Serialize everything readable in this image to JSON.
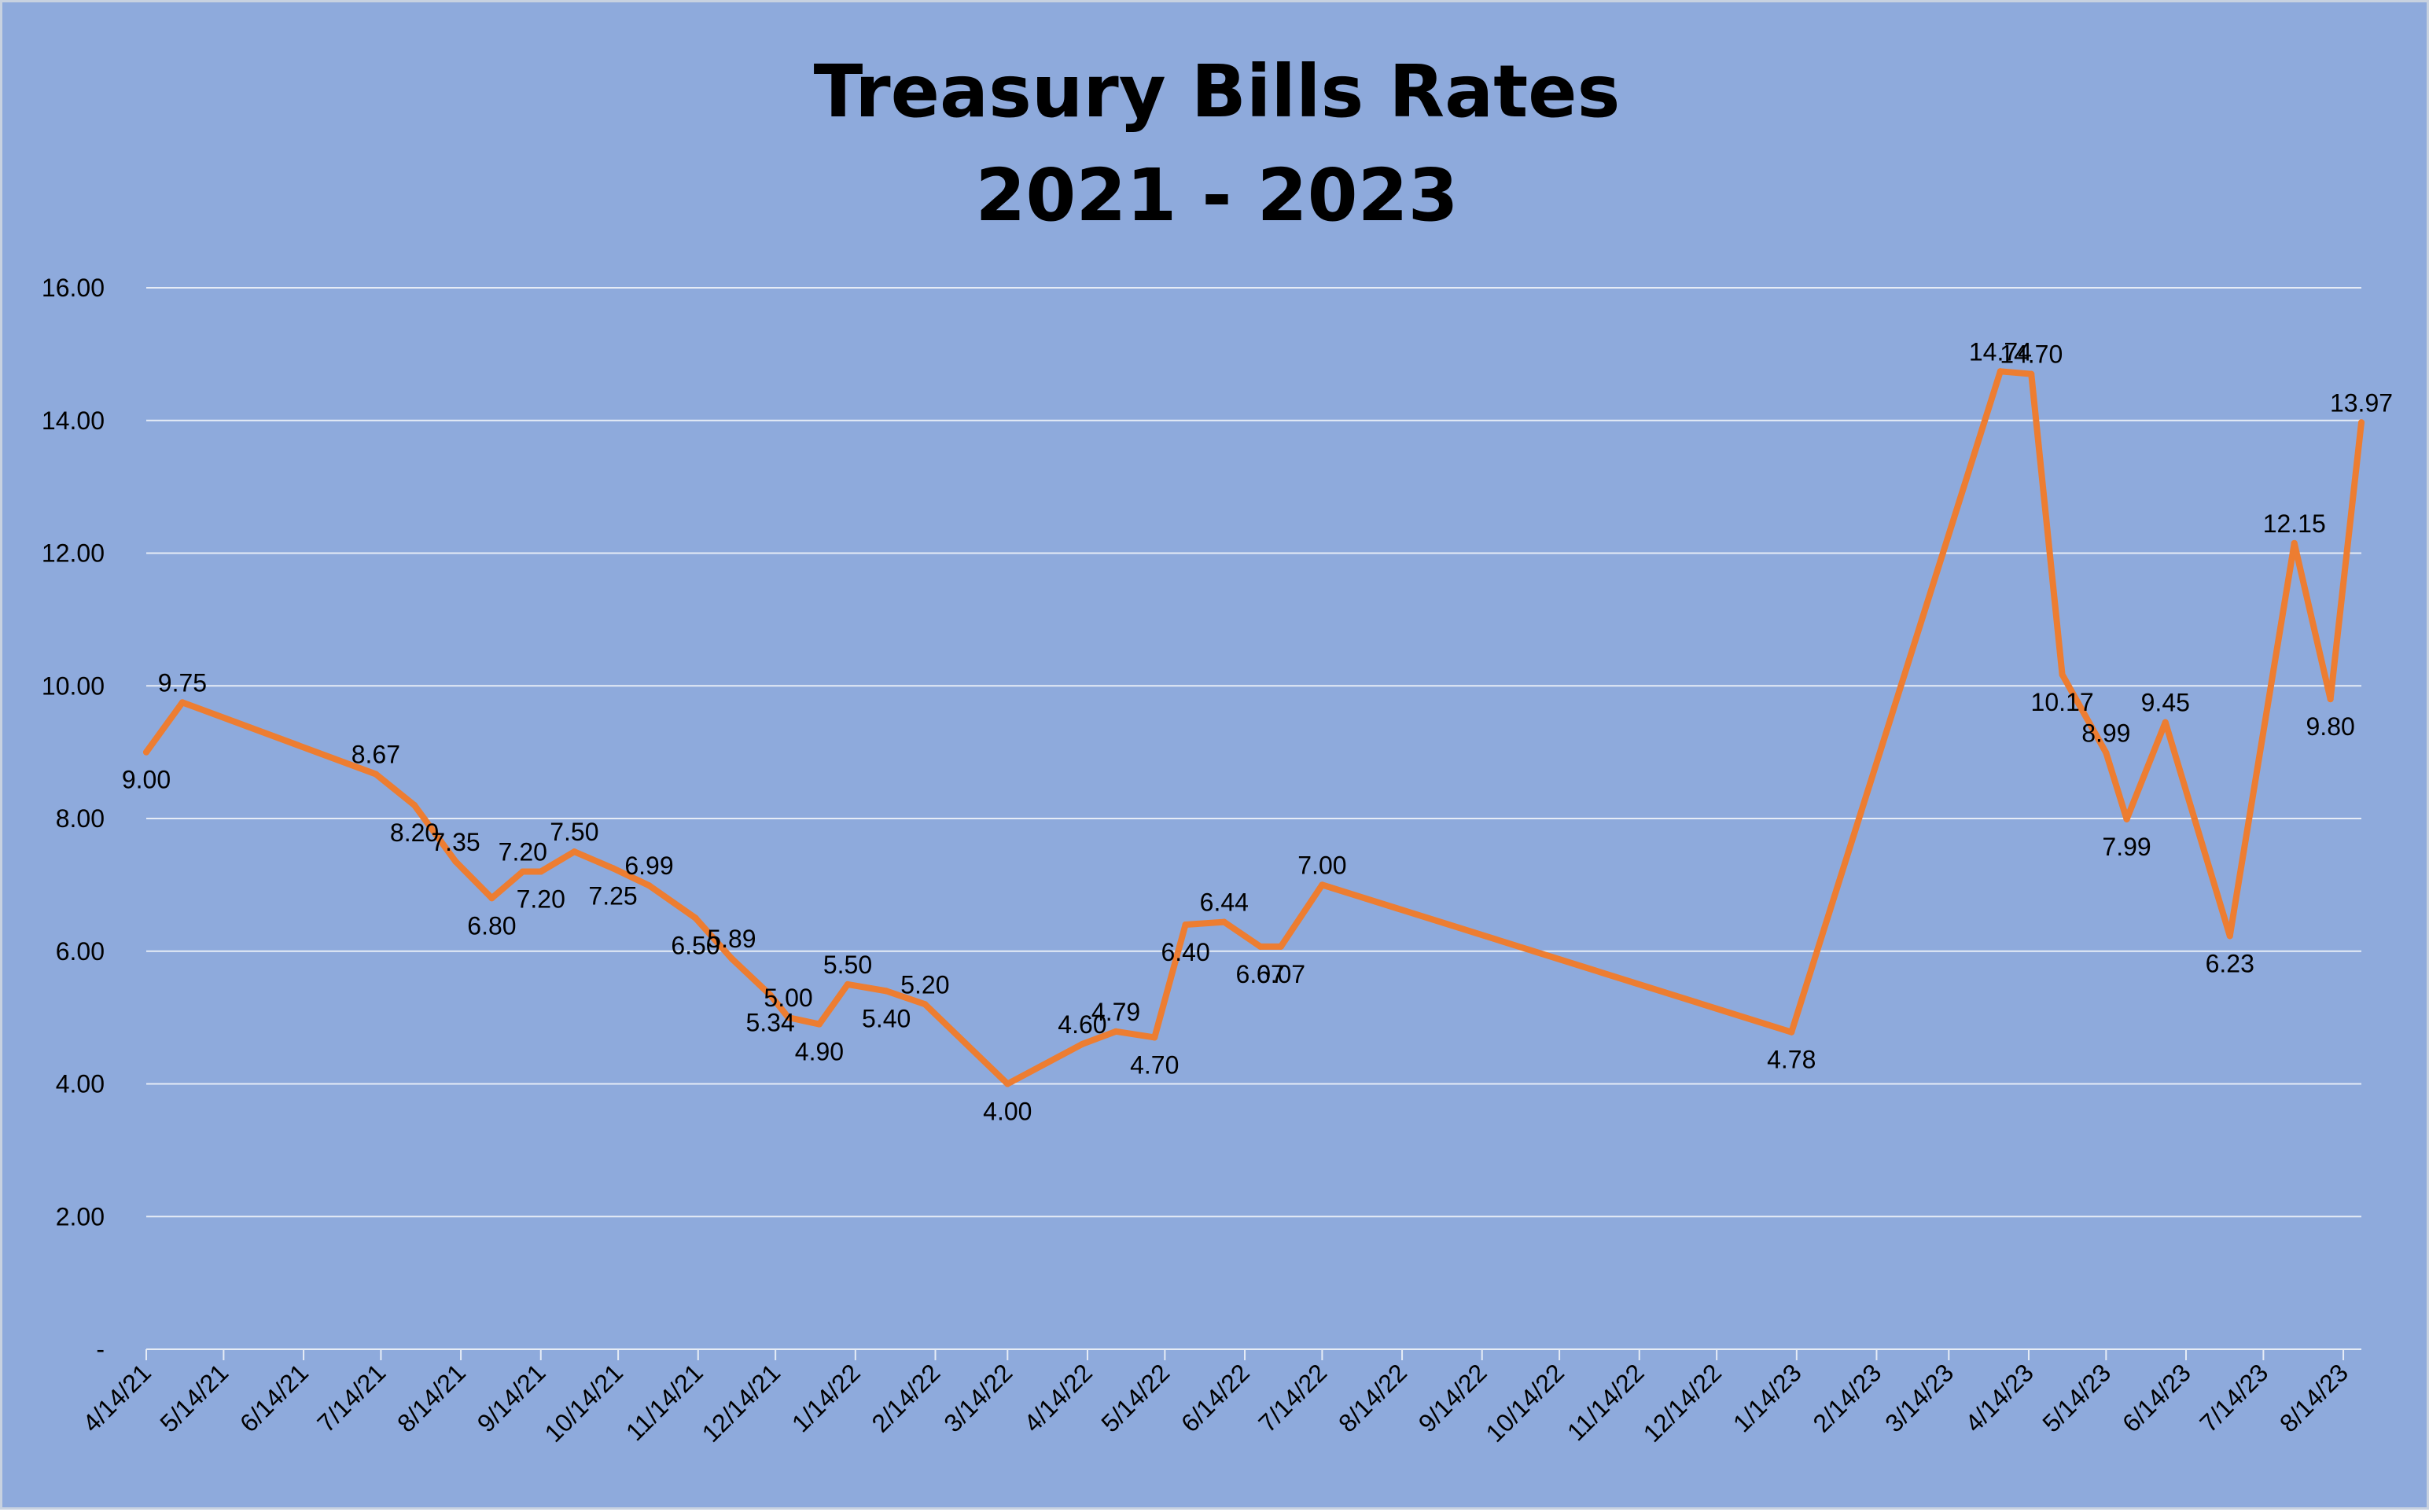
{
  "chart_data": {
    "type": "line",
    "title": "Treasury Bills Rates",
    "subtitle": "2021 - 2023",
    "xlabel": "",
    "ylabel": "",
    "ylim": [
      0,
      16
    ],
    "y_ticks": [
      "-",
      "2.00",
      "4.00",
      "6.00",
      "8.00",
      "10.00",
      "12.00",
      "14.00",
      "16.00"
    ],
    "y_tick_values": [
      0,
      2,
      4,
      6,
      8,
      10,
      12,
      14,
      16
    ],
    "x_type": "date",
    "xlim": [
      "2021-04-14",
      "2023-08-21"
    ],
    "x_ticks": [
      "4/14/21",
      "5/14/21",
      "6/14/21",
      "7/14/21",
      "8/14/21",
      "9/14/21",
      "10/14/21",
      "11/14/21",
      "12/14/21",
      "1/14/22",
      "2/14/22",
      "3/14/22",
      "4/14/22",
      "5/14/22",
      "6/14/22",
      "7/14/22",
      "8/14/22",
      "9/14/22",
      "10/14/22",
      "11/14/22",
      "12/14/22",
      "1/14/23",
      "2/14/23",
      "3/14/23",
      "4/14/23",
      "5/14/23",
      "6/14/23",
      "7/14/23",
      "8/14/23"
    ],
    "x_tick_dates": [
      "2021-04-14",
      "2021-05-14",
      "2021-06-14",
      "2021-07-14",
      "2021-08-14",
      "2021-09-14",
      "2021-10-14",
      "2021-11-14",
      "2021-12-14",
      "2022-01-14",
      "2022-02-14",
      "2022-03-14",
      "2022-04-14",
      "2022-05-14",
      "2022-06-14",
      "2022-07-14",
      "2022-08-14",
      "2022-09-14",
      "2022-10-14",
      "2022-11-14",
      "2022-12-14",
      "2023-01-14",
      "2023-02-14",
      "2023-03-14",
      "2023-04-14",
      "2023-05-14",
      "2023-06-14",
      "2023-07-14",
      "2023-08-14"
    ],
    "grid": true,
    "legend": "none",
    "series": [
      {
        "color": "#ed7d31",
        "points": [
          {
            "x": "2021-04-14",
            "y": 9.0,
            "label": "9.00"
          },
          {
            "x": "2021-04-28",
            "y": 9.75,
            "label": "9.75"
          },
          {
            "x": "2021-07-12",
            "y": 8.67,
            "label": "8.67"
          },
          {
            "x": "2021-07-27",
            "y": 8.2,
            "label": "8.20"
          },
          {
            "x": "2021-08-12",
            "y": 7.35,
            "label": "7.35"
          },
          {
            "x": "2021-08-26",
            "y": 6.8,
            "label": "6.80"
          },
          {
            "x": "2021-09-07",
            "y": 7.2,
            "label": "7.20"
          },
          {
            "x": "2021-09-14",
            "y": 7.2,
            "label": "7.20"
          },
          {
            "x": "2021-09-27",
            "y": 7.5,
            "label": "7.50"
          },
          {
            "x": "2021-10-12",
            "y": 7.25,
            "label": "7.25"
          },
          {
            "x": "2021-10-26",
            "y": 6.99,
            "label": "6.99"
          },
          {
            "x": "2021-11-13",
            "y": 6.5,
            "label": "6.50"
          },
          {
            "x": "2021-11-27",
            "y": 5.89,
            "label": "5.89"
          },
          {
            "x": "2021-12-12",
            "y": 5.34,
            "label": "5.34"
          },
          {
            "x": "2021-12-19",
            "y": 5.0,
            "label": "5.00"
          },
          {
            "x": "2021-12-31",
            "y": 4.9,
            "label": "4.90"
          },
          {
            "x": "2022-01-11",
            "y": 5.5,
            "label": "5.50"
          },
          {
            "x": "2022-01-26",
            "y": 5.4,
            "label": "5.40"
          },
          {
            "x": "2022-02-10",
            "y": 5.2,
            "label": "5.20"
          },
          {
            "x": "2022-03-14",
            "y": 4.0,
            "label": "4.00"
          },
          {
            "x": "2022-04-12",
            "y": 4.6,
            "label": "4.60"
          },
          {
            "x": "2022-04-25",
            "y": 4.79,
            "label": "4.79"
          },
          {
            "x": "2022-05-10",
            "y": 4.7,
            "label": "4.70"
          },
          {
            "x": "2022-05-22",
            "y": 6.4,
            "label": "6.40"
          },
          {
            "x": "2022-06-06",
            "y": 6.44,
            "label": "6.44"
          },
          {
            "x": "2022-06-20",
            "y": 6.07,
            "label": "6.07"
          },
          {
            "x": "2022-06-28",
            "y": 6.07,
            "label": "6.07"
          },
          {
            "x": "2022-07-14",
            "y": 7.0,
            "label": "7.00"
          },
          {
            "x": "2023-01-12",
            "y": 4.78,
            "label": "4.78"
          },
          {
            "x": "2023-04-03",
            "y": 14.74,
            "label": "14.74"
          },
          {
            "x": "2023-04-15",
            "y": 14.7,
            "label": "14.70"
          },
          {
            "x": "2023-04-27",
            "y": 10.17,
            "label": "10.17"
          },
          {
            "x": "2023-05-14",
            "y": 8.99,
            "label": "8.99"
          },
          {
            "x": "2023-05-22",
            "y": 7.99,
            "label": "7.99"
          },
          {
            "x": "2023-06-06",
            "y": 9.45,
            "label": "9.45"
          },
          {
            "x": "2023-07-01",
            "y": 6.23,
            "label": "6.23"
          },
          {
            "x": "2023-07-26",
            "y": 12.15,
            "label": "12.15"
          },
          {
            "x": "2023-08-09",
            "y": 9.8,
            "label": "9.80"
          },
          {
            "x": "2023-08-21",
            "y": 13.97,
            "label": "13.97"
          }
        ]
      }
    ]
  }
}
